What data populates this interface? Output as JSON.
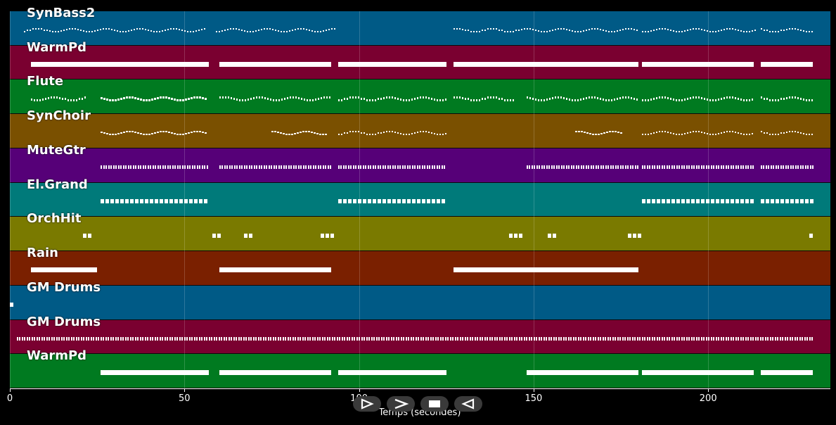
{
  "tracks": [
    {
      "name": "SynBass2",
      "color": "#005a86"
    },
    {
      "name": "WarmPd",
      "color": "#7a0030"
    },
    {
      "name": "Flute",
      "color": "#007a20"
    },
    {
      "name": "SynChoir",
      "color": "#7a5000"
    },
    {
      "name": "MuteGtr",
      "color": "#560078"
    },
    {
      "name": "El.Grand",
      "color": "#007a7a"
    },
    {
      "name": "OrchHit",
      "color": "#7a7a00"
    },
    {
      "name": "Rain",
      "color": "#7a2000"
    },
    {
      "name": "GM Drums",
      "color": "#005a86"
    },
    {
      "name": "GM Drums",
      "color": "#7a0030"
    },
    {
      "name": "WarmPd",
      "color": "#007a20"
    }
  ],
  "axis": {
    "label": "Temps (secondes)",
    "ticks": [
      "0",
      "50",
      "100",
      "150",
      "200"
    ],
    "tick_values": [
      0,
      50,
      100,
      150,
      200
    ],
    "max_seconds": 235
  },
  "notes": [
    {
      "track": 0,
      "segments": [
        [
          4,
          56
        ],
        [
          59,
          93
        ],
        [
          127,
          180
        ],
        [
          181,
          214
        ],
        [
          215,
          230
        ]
      ],
      "style": "dots"
    },
    {
      "track": 1,
      "segments": [
        [
          6,
          57
        ],
        [
          60,
          92
        ],
        [
          94,
          125
        ],
        [
          127,
          180
        ],
        [
          181,
          213
        ],
        [
          215,
          230
        ]
      ],
      "style": "bar"
    },
    {
      "track": 2,
      "segments": [
        [
          6,
          22
        ],
        [
          26,
          56
        ],
        [
          60,
          92
        ],
        [
          94,
          125
        ],
        [
          127,
          144
        ],
        [
          148,
          180
        ],
        [
          181,
          213
        ],
        [
          215,
          230
        ]
      ],
      "style": "dots"
    },
    {
      "track": 3,
      "segments": [
        [
          26,
          56
        ],
        [
          75,
          91
        ],
        [
          94,
          125
        ],
        [
          162,
          175
        ],
        [
          181,
          213
        ],
        [
          215,
          230
        ]
      ],
      "style": "dots"
    },
    {
      "track": 4,
      "segments": [
        [
          26,
          57
        ],
        [
          60,
          92
        ],
        [
          94,
          125
        ],
        [
          148,
          180
        ],
        [
          181,
          213
        ],
        [
          215,
          230
        ]
      ],
      "style": "dashes"
    },
    {
      "track": 5,
      "segments": [
        [
          26,
          57
        ],
        [
          94,
          125
        ],
        [
          181,
          213
        ],
        [
          215,
          230
        ]
      ],
      "style": "blocks"
    },
    {
      "track": 6,
      "segments": [
        [
          21,
          23
        ],
        [
          58,
          60
        ],
        [
          67,
          69
        ],
        [
          89,
          92
        ],
        [
          143,
          147
        ],
        [
          154,
          156
        ],
        [
          177,
          180
        ],
        [
          229,
          230
        ]
      ],
      "style": "blocks"
    },
    {
      "track": 7,
      "segments": [
        [
          6,
          25
        ],
        [
          60,
          92
        ],
        [
          127,
          180
        ]
      ],
      "style": "bar"
    },
    {
      "track": 8,
      "segments": [
        [
          0,
          1
        ]
      ],
      "style": "blocks"
    },
    {
      "track": 9,
      "segments": [
        [
          2,
          230
        ]
      ],
      "style": "dashes"
    },
    {
      "track": 10,
      "segments": [
        [
          26,
          57
        ],
        [
          60,
          92
        ],
        [
          94,
          125
        ],
        [
          148,
          180
        ],
        [
          181,
          213
        ],
        [
          215,
          230
        ]
      ],
      "style": "bar"
    }
  ],
  "controls": [
    {
      "name": "play-button",
      "label": "play"
    },
    {
      "name": "fast-forward-button",
      "label": "fast-forward"
    },
    {
      "name": "stop-button",
      "label": "stop"
    },
    {
      "name": "rewind-button",
      "label": "rewind"
    }
  ]
}
